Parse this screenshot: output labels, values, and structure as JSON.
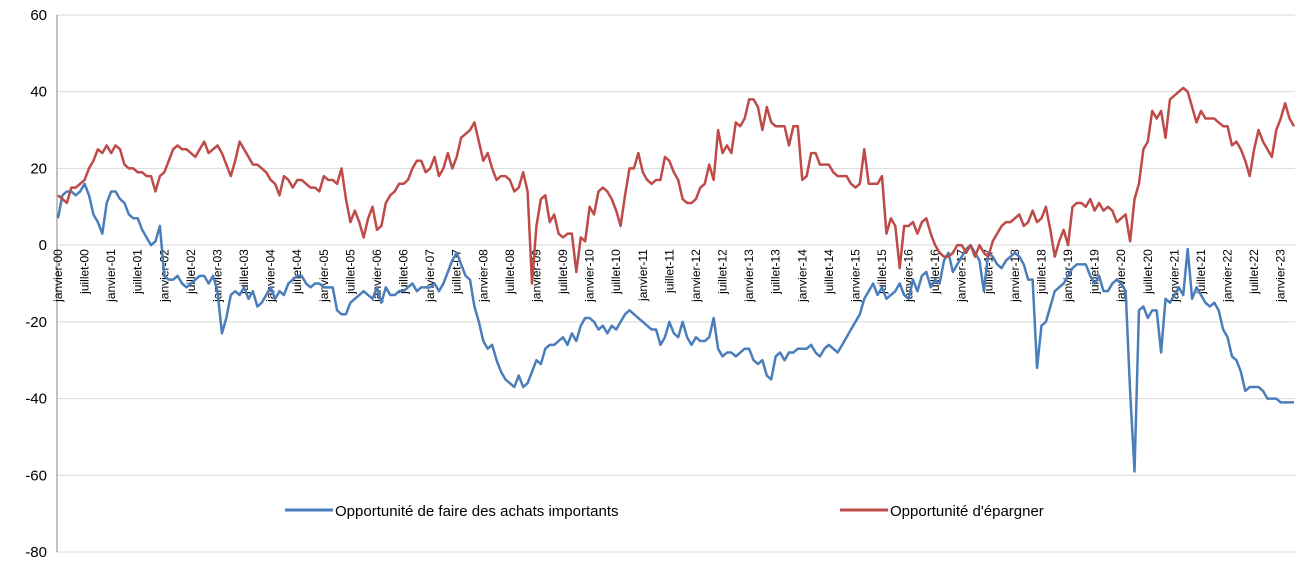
{
  "chart_data": {
    "type": "line",
    "categories": [
      "janvier-00",
      null,
      null,
      null,
      null,
      null,
      "juillet-00",
      null,
      null,
      null,
      null,
      null,
      "janvier-01",
      null,
      null,
      null,
      null,
      null,
      "juillet-01",
      null,
      null,
      null,
      null,
      null,
      "janvier-02",
      null,
      null,
      null,
      null,
      null,
      "juillet-02",
      null,
      null,
      null,
      null,
      null,
      "janvier-03",
      null,
      null,
      null,
      null,
      null,
      "juillet-03",
      null,
      null,
      null,
      null,
      null,
      "janvier-04",
      null,
      null,
      null,
      null,
      null,
      "juillet-04",
      null,
      null,
      null,
      null,
      null,
      "janvier-05",
      null,
      null,
      null,
      null,
      null,
      "juillet-05",
      null,
      null,
      null,
      null,
      null,
      "janvier-06",
      null,
      null,
      null,
      null,
      null,
      "juillet-06",
      null,
      null,
      null,
      null,
      null,
      "janvier-07",
      null,
      null,
      null,
      null,
      null,
      "juillet-07",
      null,
      null,
      null,
      null,
      null,
      "janvier-08",
      null,
      null,
      null,
      null,
      null,
      "juillet-08",
      null,
      null,
      null,
      null,
      null,
      "janvier-09",
      null,
      null,
      null,
      null,
      null,
      "juillet-09",
      null,
      null,
      null,
      null,
      null,
      "janvier-10",
      null,
      null,
      null,
      null,
      null,
      "juillet-10",
      null,
      null,
      null,
      null,
      null,
      "janvier-11",
      null,
      null,
      null,
      null,
      null,
      "juillet-11",
      null,
      null,
      null,
      null,
      null,
      "janvier-12",
      null,
      null,
      null,
      null,
      null,
      "juillet-12",
      null,
      null,
      null,
      null,
      null,
      "janvier-13",
      null,
      null,
      null,
      null,
      null,
      "juillet-13",
      null,
      null,
      null,
      null,
      null,
      "janvier-14",
      null,
      null,
      null,
      null,
      null,
      "juillet-14",
      null,
      null,
      null,
      null,
      null,
      "janvier-15",
      null,
      null,
      null,
      null,
      null,
      "juillet-15",
      null,
      null,
      null,
      null,
      null,
      "janvier-16",
      null,
      null,
      null,
      null,
      null,
      "juillet-16",
      null,
      null,
      null,
      null,
      null,
      "janvier-17",
      null,
      null,
      null,
      null,
      null,
      "juillet-17",
      null,
      null,
      null,
      null,
      null,
      "janvier-18",
      null,
      null,
      null,
      null,
      null,
      "juillet-18",
      null,
      null,
      null,
      null,
      null,
      "janvier-19",
      null,
      null,
      null,
      null,
      null,
      "juillet-19",
      null,
      null,
      null,
      null,
      null,
      "janvier-20",
      null,
      null,
      null,
      null,
      null,
      "juillet-20",
      null,
      null,
      null,
      null,
      null,
      "janvier-21",
      null,
      null,
      null,
      null,
      null,
      "juillet-21",
      null,
      null,
      null,
      null,
      null,
      "janvier-22",
      null,
      null,
      null,
      null,
      null,
      "juillet-22",
      null,
      null,
      null,
      null,
      null,
      "janvier-23",
      null,
      null,
      null
    ],
    "series": [
      {
        "name": "Opportunité de faire des achats importants",
        "color": "#4a7ebb",
        "values": [
          7,
          13,
          14,
          14,
          13,
          14,
          16,
          13,
          8,
          6,
          3,
          11,
          14,
          14,
          12,
          11,
          8,
          7,
          7,
          4,
          2,
          0,
          1,
          5,
          -8,
          -9,
          -9,
          -8,
          -10,
          -11,
          -10,
          -9,
          -8,
          -8,
          -10,
          -8,
          -12,
          -23,
          -19,
          -13,
          -12,
          -13,
          -11,
          -14,
          -12,
          -16,
          -15,
          -13,
          -11,
          -14,
          -12,
          -13,
          -10,
          -9,
          -8,
          -8,
          -10,
          -11,
          -10,
          -10,
          -11,
          -11,
          -11,
          -17,
          -18,
          -18,
          -15,
          -14,
          -13,
          -12,
          -13,
          -14,
          -11,
          -15,
          -11,
          -13,
          -13,
          -12,
          -12,
          -11,
          -10,
          -12,
          -11,
          -11,
          -11,
          -10,
          -12,
          -10,
          -7,
          -4,
          -2,
          -5,
          -8,
          -9,
          -16,
          -20,
          -25,
          -27,
          -26,
          -30,
          -33,
          -35,
          -36,
          -37,
          -34,
          -37,
          -36,
          -33,
          -30,
          -31,
          -27,
          -26,
          -26,
          -25,
          -24,
          -26,
          -23,
          -25,
          -21,
          -19,
          -19,
          -20,
          -22,
          -21,
          -23,
          -21,
          -22,
          -20,
          -18,
          -17,
          -18,
          -19,
          -20,
          -21,
          -22,
          -22,
          -26,
          -24,
          -20,
          -23,
          -24,
          -20,
          -24,
          -26,
          -24,
          -25,
          -25,
          -24,
          -19,
          -27,
          -29,
          -28,
          -28,
          -29,
          -28,
          -27,
          -27,
          -30,
          -31,
          -30,
          -34,
          -35,
          -29,
          -28,
          -30,
          -28,
          -28,
          -27,
          -27,
          -27,
          -26,
          -28,
          -29,
          -27,
          -26,
          -27,
          -28,
          -26,
          -24,
          -22,
          -20,
          -18,
          -14,
          -12,
          -10,
          -13,
          -11,
          -14,
          -13,
          -12,
          -10,
          -13,
          -14,
          -9,
          -12,
          -8,
          -7,
          -11,
          -9,
          -10,
          -4,
          -2,
          -7,
          -5,
          -3,
          -1,
          0,
          -2,
          -4,
          -12,
          -2,
          -3,
          -5,
          -6,
          -4,
          -3,
          -2,
          -3,
          -5,
          -9,
          -9,
          -32,
          -21,
          -20,
          -16,
          -12,
          -11,
          -10,
          -8,
          -6,
          -5,
          -5,
          -5,
          -8,
          -10,
          -8,
          -12,
          -12,
          -10,
          -9,
          -10,
          -12,
          -38,
          -59,
          -17,
          -16,
          -19,
          -17,
          -17,
          -28,
          -14,
          -15,
          -13,
          -11,
          -13,
          -1,
          -14,
          -11,
          -13,
          -15,
          -16,
          -15,
          -17,
          -22,
          -24,
          -29,
          -30,
          -33,
          -38,
          -37,
          -37,
          -37,
          -38,
          -40,
          -40,
          -40,
          -41,
          -41,
          -41,
          -41
        ]
      },
      {
        "name": "Opportunité d'épargner",
        "color": "#be4b48",
        "values": [
          13,
          12,
          11,
          15,
          15,
          16,
          17,
          20,
          22,
          25,
          24,
          26,
          24,
          26,
          25,
          21,
          20,
          20,
          19,
          19,
          18,
          18,
          14,
          18,
          19,
          22,
          25,
          26,
          25,
          25,
          24,
          23,
          25,
          27,
          24,
          25,
          26,
          24,
          21,
          18,
          22,
          27,
          25,
          23,
          21,
          21,
          20,
          19,
          17,
          16,
          13,
          18,
          17,
          15,
          17,
          17,
          16,
          15,
          15,
          14,
          18,
          17,
          17,
          16,
          20,
          12,
          6,
          9,
          6,
          2,
          7,
          10,
          4,
          5,
          11,
          13,
          14,
          16,
          16,
          17,
          20,
          22,
          22,
          19,
          20,
          23,
          18,
          20,
          24,
          20,
          23,
          28,
          29,
          30,
          32,
          27,
          22,
          24,
          20,
          17,
          18,
          18,
          17,
          14,
          15,
          19,
          14,
          -10,
          5,
          12,
          13,
          6,
          8,
          3,
          2,
          3,
          3,
          -7,
          2,
          1,
          10,
          8,
          14,
          15,
          14,
          12,
          9,
          5,
          13,
          20,
          20,
          24,
          19,
          17,
          16,
          17,
          17,
          23,
          22,
          19,
          17,
          12,
          11,
          11,
          12,
          15,
          16,
          21,
          17,
          30,
          24,
          26,
          24,
          32,
          31,
          33,
          38,
          38,
          36,
          30,
          36,
          32,
          31,
          31,
          31,
          26,
          31,
          31,
          17,
          18,
          24,
          24,
          21,
          21,
          21,
          19,
          18,
          18,
          18,
          16,
          15,
          16,
          25,
          16,
          16,
          16,
          18,
          3,
          7,
          5,
          -6,
          5,
          5,
          6,
          3,
          6,
          7,
          3,
          0,
          -2,
          -3,
          -3,
          -2,
          0,
          0,
          -2,
          0,
          -3,
          0,
          -2,
          -3,
          1,
          3,
          5,
          6,
          6,
          7,
          8,
          5,
          6,
          9,
          6,
          7,
          10,
          4,
          -3,
          1,
          4,
          0,
          10,
          11,
          11,
          10,
          12,
          9,
          11,
          9,
          10,
          9,
          6,
          7,
          8,
          1,
          12,
          16,
          25,
          27,
          35,
          33,
          35,
          28,
          38,
          39,
          40,
          41,
          40,
          36,
          32,
          35,
          33,
          33,
          33,
          32,
          31,
          31,
          26,
          27,
          25,
          22,
          18,
          25,
          30,
          27,
          25,
          23,
          30,
          33,
          37,
          33,
          31
        ]
      }
    ],
    "ylim": [
      -80,
      60
    ],
    "yticks": [
      -80,
      -60,
      -40,
      -20,
      0,
      20,
      40,
      60
    ],
    "grid": true,
    "legend": "bottom"
  }
}
